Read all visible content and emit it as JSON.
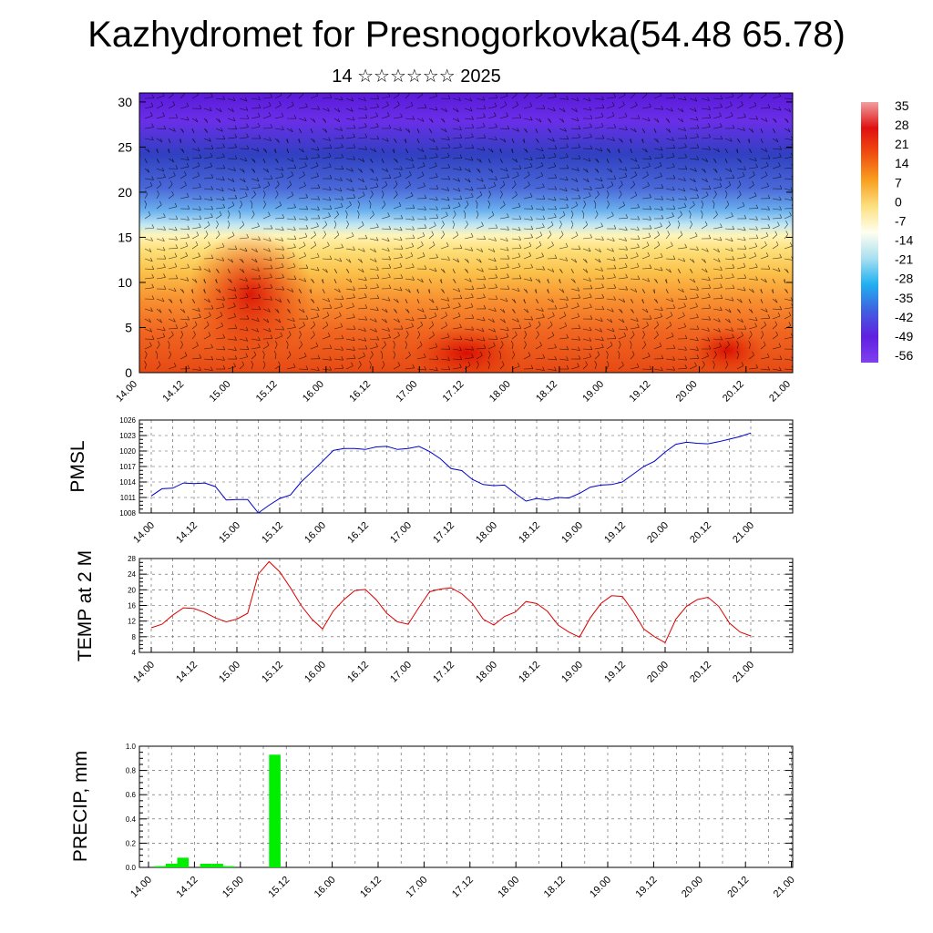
{
  "title": "Kazhydromet for Presnogorkovka(54.48 65.78)",
  "subtitle": "14 ☆☆☆☆☆☆ 2025",
  "time_labels": [
    "14.00",
    "14.12",
    "15.00",
    "15.12",
    "16.00",
    "16.12",
    "17.00",
    "17.12",
    "18.00",
    "18.12",
    "19.00",
    "19.12",
    "20.00",
    "20.12",
    "21.00"
  ],
  "colors": {
    "pmsl_line": "#0000cc",
    "temp_line": "#dd0000",
    "precip_bar": "#00ee00",
    "grid": "#555555",
    "wind_barb": "#000000"
  },
  "colorbar": {
    "labels": [
      "35",
      "28",
      "21",
      "14",
      "7",
      "0",
      "-7",
      "-14",
      "-21",
      "-28",
      "-35",
      "-42",
      "-49",
      "-56"
    ],
    "stops": [
      "#f0a0a0",
      "#e01010",
      "#f05010",
      "#f8a020",
      "#fce080",
      "#fffff0",
      "#a8e0f0",
      "#20b0f0",
      "#4060e0",
      "#6020e0",
      "#8040f0"
    ]
  },
  "chart_data": [
    {
      "type": "heatmap",
      "name": "temperature-height-section",
      "title": "",
      "xlabel": "",
      "ylabel": "",
      "ylim": [
        0,
        31
      ],
      "yticks": [
        0,
        5,
        10,
        15,
        20,
        25,
        30
      ],
      "x_categories": [
        "14.00",
        "14.12",
        "15.00",
        "15.12",
        "16.00",
        "16.12",
        "17.00",
        "17.12",
        "18.00",
        "18.12",
        "19.00",
        "19.12",
        "20.00",
        "20.12",
        "21.00"
      ],
      "color_scale_range": [
        -56,
        35
      ],
      "overlay": "wind barbs"
    },
    {
      "type": "line",
      "name": "pmsl",
      "ylabel": "PMSL",
      "ylim": [
        1008,
        1026
      ],
      "yticks": [
        "1008",
        "1011",
        "1014",
        "1017",
        "1020",
        "1023",
        "1026"
      ],
      "x_start": 0,
      "x_step_hours": 3,
      "series": [
        {
          "values": [
            1011.3,
            1012.7,
            1012.8,
            1013.8,
            1013.7,
            1013.8,
            1013.1,
            1010.5,
            1010.6,
            1010.6,
            1008.0,
            1009.5,
            1010.8,
            1011.5,
            1014.0,
            1016.0,
            1018.0,
            1020.1,
            1020.5,
            1020.5,
            1020.3,
            1020.8,
            1020.9,
            1020.3,
            1020.5,
            1020.9,
            1019.9,
            1018.5,
            1016.6,
            1016.2,
            1014.5,
            1013.5,
            1013.3,
            1013.4,
            1011.8,
            1010.3,
            1010.8,
            1010.5,
            1011.0,
            1010.9,
            1011.8,
            1013.0,
            1013.4,
            1013.5,
            1014.0,
            1015.5,
            1017.0,
            1018.0,
            1019.8,
            1021.3,
            1021.7,
            1021.5,
            1021.4,
            1021.8,
            1022.3,
            1022.8,
            1023.5
          ]
        }
      ]
    },
    {
      "type": "line",
      "name": "temp-2m",
      "ylabel": "TEMP at 2 M",
      "ylim": [
        4,
        28
      ],
      "yticks": [
        "4",
        "8",
        "12",
        "16",
        "20",
        "24",
        "28"
      ],
      "x_start": 0,
      "x_step_hours": 3,
      "series": [
        {
          "values": [
            10.3,
            11.2,
            13.5,
            15.4,
            15.2,
            14.2,
            12.8,
            11.8,
            12.5,
            14.0,
            24.0,
            27.2,
            24.6,
            20.5,
            16.0,
            12.5,
            10.0,
            14.6,
            17.5,
            19.8,
            20.1,
            17.5,
            14.0,
            11.8,
            11.2,
            15.5,
            19.5,
            20.2,
            20.5,
            19.0,
            16.5,
            12.5,
            11.0,
            13.2,
            14.3,
            17.0,
            16.5,
            14.5,
            11.0,
            9.2,
            7.9,
            12.8,
            16.5,
            18.5,
            18.3,
            14.5,
            10.0,
            8.0,
            6.5,
            12.5,
            15.8,
            17.5,
            18.1,
            15.8,
            11.5,
            9.2,
            8.2
          ]
        }
      ]
    },
    {
      "type": "bar",
      "name": "precip",
      "ylabel": "PRECIP, mm",
      "ylim": [
        0,
        1.0
      ],
      "yticks": [
        "0.0",
        "0.2",
        "0.4",
        "0.6",
        "0.8",
        "1.0"
      ],
      "x_start": 0,
      "x_step_hours": 3,
      "series": [
        {
          "values": [
            0,
            0.01,
            0.03,
            0.08,
            0,
            0.03,
            0.03,
            0.01,
            0,
            0,
            0,
            0.93,
            0,
            0,
            0,
            0,
            0,
            0,
            0,
            0,
            0,
            0,
            0,
            0,
            0,
            0,
            0,
            0,
            0,
            0,
            0,
            0,
            0,
            0,
            0,
            0,
            0,
            0,
            0,
            0,
            0,
            0,
            0,
            0,
            0,
            0,
            0,
            0,
            0,
            0,
            0,
            0,
            0,
            0,
            0,
            0,
            0
          ]
        }
      ]
    }
  ]
}
